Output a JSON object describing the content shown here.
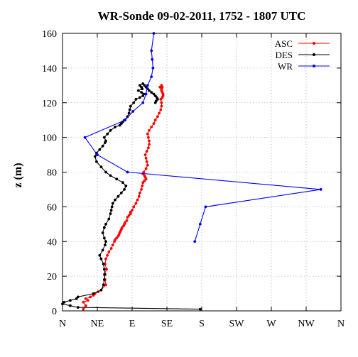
{
  "chart_data": {
    "type": "line",
    "title": "WR-Sonde 09-02-2011, 1752 - 1807 UTC",
    "xlabel": "",
    "ylabel": "z (m)",
    "xlim": [
      0,
      360
    ],
    "ylim": [
      0,
      160
    ],
    "xticks": [
      {
        "value": 0,
        "label": "N"
      },
      {
        "value": 45,
        "label": "NE"
      },
      {
        "value": 90,
        "label": "E"
      },
      {
        "value": 135,
        "label": "SE"
      },
      {
        "value": 180,
        "label": "S"
      },
      {
        "value": 225,
        "label": "SW"
      },
      {
        "value": 270,
        "label": "W"
      },
      {
        "value": 315,
        "label": "NW"
      },
      {
        "value": 360,
        "label": "N"
      }
    ],
    "yticks": [
      0,
      20,
      40,
      60,
      80,
      100,
      120,
      140,
      160
    ],
    "grid": true,
    "legend_position": "top-right",
    "series": [
      {
        "name": "ASC",
        "color": "#ff0000",
        "x": [
          27,
          30,
          27,
          33,
          30,
          36,
          40,
          42,
          46,
          50,
          56,
          55,
          54,
          57,
          55,
          56,
          58,
          60,
          63,
          65,
          67,
          68,
          70,
          72,
          73,
          74,
          75,
          76,
          77,
          79,
          80,
          81,
          83,
          84,
          86,
          88,
          88,
          90,
          92,
          95,
          97,
          99,
          100,
          102,
          103,
          104,
          106,
          108,
          107,
          106,
          104,
          105,
          108,
          110,
          109,
          108,
          107,
          109,
          111,
          112,
          112,
          111,
          110,
          112,
          115,
          118,
          120,
          123,
          125,
          127,
          128,
          128,
          127,
          129,
          130,
          130,
          129,
          128,
          128,
          129,
          128,
          126
        ],
        "y": [
          1,
          3,
          5,
          6,
          7,
          8,
          9,
          10,
          11,
          12,
          15,
          18,
          21,
          24,
          27,
          30,
          32,
          34,
          36,
          38,
          40,
          41,
          42,
          43,
          44,
          45,
          46,
          47,
          48,
          49,
          50,
          51,
          52,
          54,
          55,
          56,
          57,
          58,
          60,
          62,
          64,
          66,
          68,
          70,
          72,
          74,
          75,
          76,
          77,
          78,
          79,
          80,
          82,
          84,
          86,
          88,
          90,
          92,
          94,
          96,
          98,
          100,
          102,
          104,
          106,
          108,
          110,
          112,
          114,
          116,
          118,
          120,
          122,
          123,
          124,
          125,
          126,
          127,
          128,
          129,
          130,
          129
        ]
      },
      {
        "name": "DES",
        "color": "#000000",
        "x": [
          178,
          20,
          10,
          0,
          2,
          10,
          18,
          20,
          40,
          50,
          53,
          54,
          55,
          54,
          53,
          50,
          48,
          52,
          55,
          56,
          54,
          52,
          54,
          56,
          60,
          62,
          63,
          64,
          65,
          68,
          72,
          76,
          80,
          82,
          78,
          70,
          62,
          56,
          50,
          44,
          42,
          44,
          48,
          52,
          55,
          56,
          54,
          58,
          62,
          68,
          74,
          76,
          78,
          80,
          84,
          86,
          87,
          88,
          92,
          95,
          100,
          104,
          105,
          102,
          98,
          103,
          102,
          100,
          104,
          106,
          108,
          110,
          112,
          115,
          118,
          120,
          122,
          123,
          121,
          120
        ],
        "y": [
          1,
          2,
          3,
          4,
          5,
          6,
          7,
          8,
          10,
          12,
          15,
          18,
          21,
          24,
          27,
          30,
          32,
          35,
          38,
          40,
          42,
          45,
          48,
          50,
          53,
          56,
          58,
          60,
          62,
          64,
          66,
          68,
          70,
          72,
          74,
          76,
          78,
          80,
          83,
          86,
          89,
          91,
          93,
          95,
          97,
          98,
          100,
          102,
          104,
          106,
          107,
          108,
          109,
          110,
          112,
          114,
          116,
          118,
          120,
          122,
          123,
          124,
          125,
          126,
          127,
          128,
          129,
          130,
          131,
          130,
          129,
          128,
          127,
          126,
          125,
          124,
          123,
          122,
          121,
          120
        ]
      },
      {
        "name": "WR",
        "color": "#0000ff",
        "x": [
          171,
          178,
          185,
          334,
          84,
          45,
          29,
          81,
          91,
          104,
          108,
          110,
          115,
          117,
          116,
          115,
          118
        ],
        "y": [
          40,
          50,
          60,
          70,
          80,
          90,
          100,
          110,
          115,
          120,
          125,
          130,
          135,
          140,
          145,
          150,
          160
        ]
      }
    ]
  }
}
